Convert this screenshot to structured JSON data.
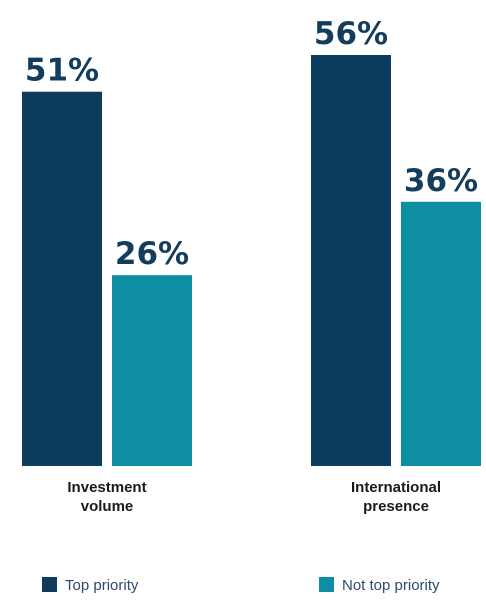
{
  "chart_data": {
    "type": "bar",
    "categories": [
      "Investment volume",
      "International presence"
    ],
    "category_label_lines": [
      [
        "Investment",
        "volume"
      ],
      [
        "International",
        "presence"
      ]
    ],
    "series": [
      {
        "name": "Top priority",
        "values": [
          51,
          56
        ],
        "labels": [
          "51%",
          "56%"
        ],
        "color": "#0e3c5f"
      },
      {
        "name": "Not top priority",
        "values": [
          26,
          36
        ],
        "labels": [
          "26%",
          "36%"
        ],
        "color": "#0e8ea3"
      }
    ],
    "ylim": [
      0,
      56
    ],
    "unit": "%",
    "grid": false,
    "legend_position": "bottom",
    "title": "",
    "xlabel": "",
    "ylabel": ""
  }
}
